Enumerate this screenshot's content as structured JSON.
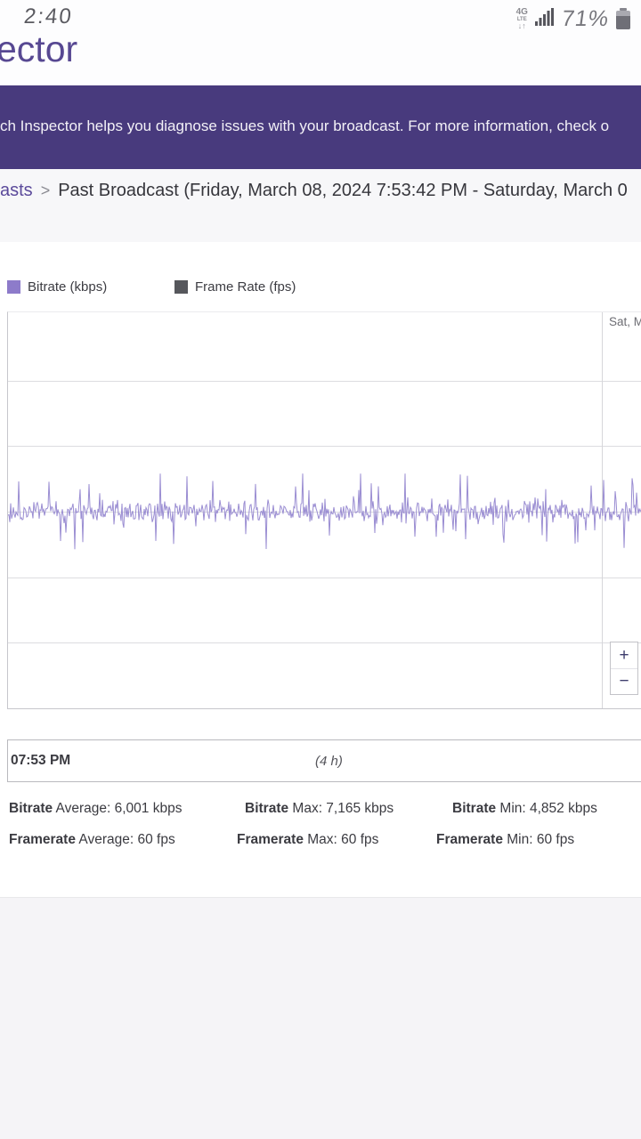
{
  "status_bar": {
    "time": "2:40",
    "battery_percent": "71%",
    "network_type": "4G",
    "network_sub": "LTE",
    "network_arrows": "↓↑"
  },
  "header": {
    "logo_text": "ector"
  },
  "banner": {
    "text": "ch Inspector helps you diagnose issues with your broadcast. For more information, check o",
    "bg_color": "#483a7d"
  },
  "breadcrumb": {
    "link": "asts",
    "separator": ">",
    "current": "Past Broadcast (Friday, March 08, 2024 7:53:42 PM - Saturday, March 0"
  },
  "legend": {
    "items": [
      {
        "label": "Bitrate (kbps)",
        "color": "#8d7bca"
      },
      {
        "label": "Frame Rate (fps)",
        "color": "#56575c"
      }
    ]
  },
  "chart": {
    "date_label": "Sat, M",
    "zoom_in_label": "+",
    "zoom_out_label": "−"
  },
  "range_selector": {
    "start_label": "07:53 PM",
    "duration_label": "(4 h)"
  },
  "stats": {
    "items": [
      {
        "label": "Bitrate",
        "text": " Average: 6,001 kbps"
      },
      {
        "label": "Bitrate",
        "text": " Max: 7,165 kbps"
      },
      {
        "label": "Bitrate",
        "text": " Min: 4,852 kbps"
      },
      {
        "label": "Framerate",
        "text": " Average: 60 fps"
      },
      {
        "label": "Framerate",
        "text": " Max: 60 fps"
      },
      {
        "label": "Framerate",
        "text": " Min: 60 fps"
      }
    ]
  },
  "chart_data": {
    "type": "line",
    "title": "",
    "xlabel": "",
    "ylabel": "",
    "x_axis": {
      "start_tick": "07:53 PM",
      "window_label": "(4 h)",
      "right_edge_date_label": "Sat, M"
    },
    "ylim_estimated_kbps": [
      0,
      12000
    ],
    "gridline_interval_kbps": 2000,
    "grid": true,
    "legend_position": "top-left",
    "series": [
      {
        "name": "Bitrate (kbps)",
        "color": "#9a8dd2",
        "unit": "kbps",
        "average": 6001,
        "max": 7165,
        "min": 4852,
        "appearance": "dense high-frequency oscillation around the average for ~4 hours"
      },
      {
        "name": "Frame Rate (fps)",
        "color": "#56575c",
        "unit": "fps",
        "average": 60,
        "max": 60,
        "min": 60
      }
    ]
  }
}
